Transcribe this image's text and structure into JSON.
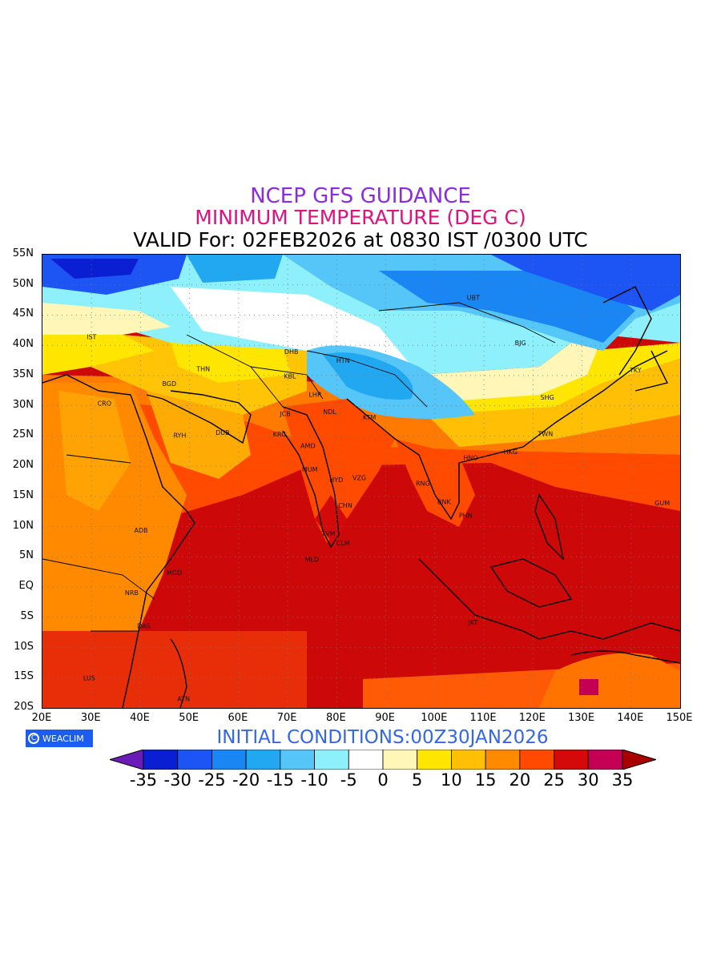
{
  "header": {
    "line1": "NCEP GFS GUIDANCE",
    "line2": "MINIMUM TEMPERATURE (DEG C)",
    "line3": "VALID For: 02FEB2026 at 0830 IST /0300 UTC"
  },
  "axes": {
    "lat_labels": [
      "55N",
      "50N",
      "45N",
      "40N",
      "35N",
      "30N",
      "25N",
      "20N",
      "15N",
      "10N",
      "5N",
      "EQ",
      "5S",
      "10S",
      "15S",
      "20S"
    ],
    "lon_labels": [
      "20E",
      "30E",
      "40E",
      "50E",
      "60E",
      "70E",
      "80E",
      "90E",
      "100E",
      "110E",
      "120E",
      "130E",
      "140E",
      "150E"
    ],
    "lat_range": [
      -20,
      55
    ],
    "lon_range": [
      20,
      150
    ],
    "grid": "dotted"
  },
  "cities": [
    {
      "code": "UBT"
    },
    {
      "code": "BJG"
    },
    {
      "code": "TKY"
    },
    {
      "code": "SHG"
    },
    {
      "code": "TWN"
    },
    {
      "code": "HKG"
    },
    {
      "code": "HNO"
    },
    {
      "code": "RNG"
    },
    {
      "code": "BNK"
    },
    {
      "code": "PHN"
    },
    {
      "code": "GUM"
    },
    {
      "code": "JKT"
    },
    {
      "code": "HTN"
    },
    {
      "code": "DHB"
    },
    {
      "code": "KBL"
    },
    {
      "code": "LHR"
    },
    {
      "code": "NDL"
    },
    {
      "code": "KTM"
    },
    {
      "code": "JCB"
    },
    {
      "code": "KRC"
    },
    {
      "code": "AMD"
    },
    {
      "code": "MUM"
    },
    {
      "code": "HYD"
    },
    {
      "code": "VZG"
    },
    {
      "code": "CHN"
    },
    {
      "code": "TVM"
    },
    {
      "code": "CLM"
    },
    {
      "code": "MLD"
    },
    {
      "code": "THN"
    },
    {
      "code": "BGD"
    },
    {
      "code": "IST"
    },
    {
      "code": "CRO"
    },
    {
      "code": "RYH"
    },
    {
      "code": "DUB"
    },
    {
      "code": "ADB"
    },
    {
      "code": "MGD"
    },
    {
      "code": "NRB"
    },
    {
      "code": "DAS"
    },
    {
      "code": "LUS"
    },
    {
      "code": "ATN"
    }
  ],
  "footer": {
    "logo": "WEACLIM",
    "logo_symbol": "C",
    "initial_conditions": "INITIAL CONDITIONS:00Z30JAN2026"
  },
  "legend": {
    "labels": [
      "-35",
      "-30",
      "-25",
      "-20",
      "-15",
      "-10",
      "-5",
      "0",
      "5",
      "10",
      "15",
      "20",
      "25",
      "30",
      "35"
    ],
    "colors": [
      "#6a1cb8",
      "#0a1fd2",
      "#1c55f4",
      "#1a86f4",
      "#22a8f0",
      "#55c6f7",
      "#8df0fb",
      "#ffffff",
      "#fff6b8",
      "#ffe600",
      "#ffbf05",
      "#ff8a00",
      "#ff4a00",
      "#d40a0a",
      "#c40055",
      "#a80000"
    ],
    "unit": "DEG C"
  }
}
